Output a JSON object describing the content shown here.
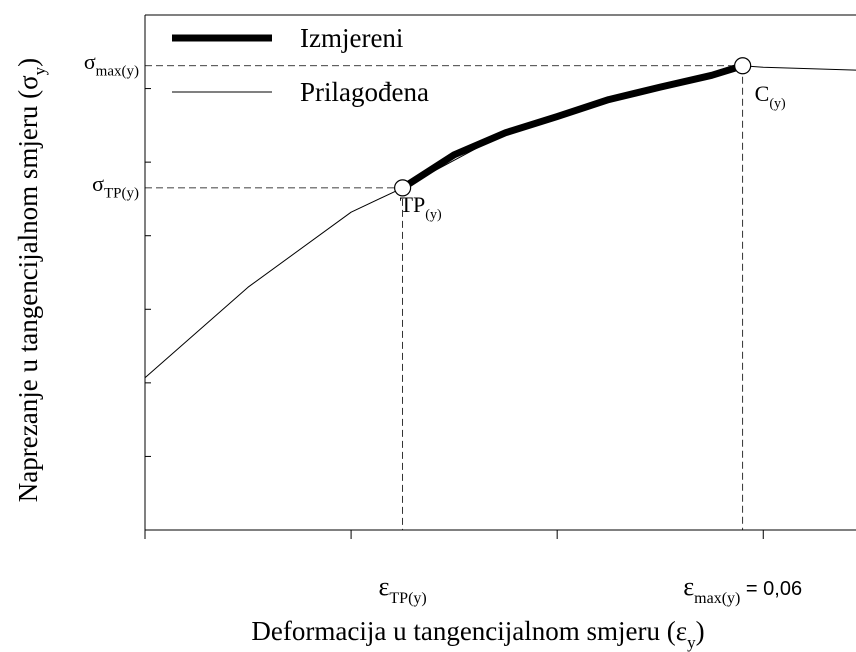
{
  "chart_data": {
    "type": "line",
    "xlabel": {
      "text": "Deformacija u tangencijalnom smjeru (ε",
      "sub": "y",
      "end": ")"
    },
    "ylabel": {
      "text": "Naprezanje u tangencijalnom smjeru (σ",
      "sub": "y",
      "end": ")"
    },
    "xlim": [
      0,
      0.069
    ],
    "ylim": [
      0,
      7
    ],
    "xticks": [
      0,
      0.02,
      0.04,
      0.06
    ],
    "yticks": [
      0,
      1,
      2,
      3,
      4,
      5,
      6,
      7
    ],
    "legend": "upper left",
    "series": [
      {
        "name": "Izmjereni",
        "color": "#000000",
        "line_width": 7,
        "x": [
          0.025,
          0.03,
          0.035,
          0.04,
          0.045,
          0.05,
          0.055,
          0.058
        ],
        "values": [
          4.65,
          5.1,
          5.4,
          5.62,
          5.85,
          6.02,
          6.18,
          6.31
        ]
      },
      {
        "name": "Prilagođena",
        "color": "#000000",
        "line_width": 1,
        "x": [
          0,
          0.01,
          0.02,
          0.025,
          0.035,
          0.045,
          0.058,
          0.06,
          0.069
        ],
        "values": [
          2.07,
          3.3,
          4.32,
          4.65,
          5.4,
          5.85,
          6.31,
          6.29,
          6.25
        ]
      }
    ],
    "points": [
      {
        "label": {
          "text": "TP",
          "sub": "(y)"
        },
        "x": 0.025,
        "y": 4.65,
        "y_annotation": {
          "text": "σ",
          "sub": "TP(y)"
        },
        "x_annotation": {
          "text": "ε",
          "sub": "TP(y)"
        }
      },
      {
        "label": {
          "text": "C",
          "sub": "(y)"
        },
        "x": 0.058,
        "y": 6.31,
        "y_annotation": {
          "text": "σ",
          "sub": "max(y)"
        },
        "x_annotation": {
          "text": "ε",
          "sub": "max(y)",
          "end": " = 0,06"
        }
      }
    ]
  }
}
